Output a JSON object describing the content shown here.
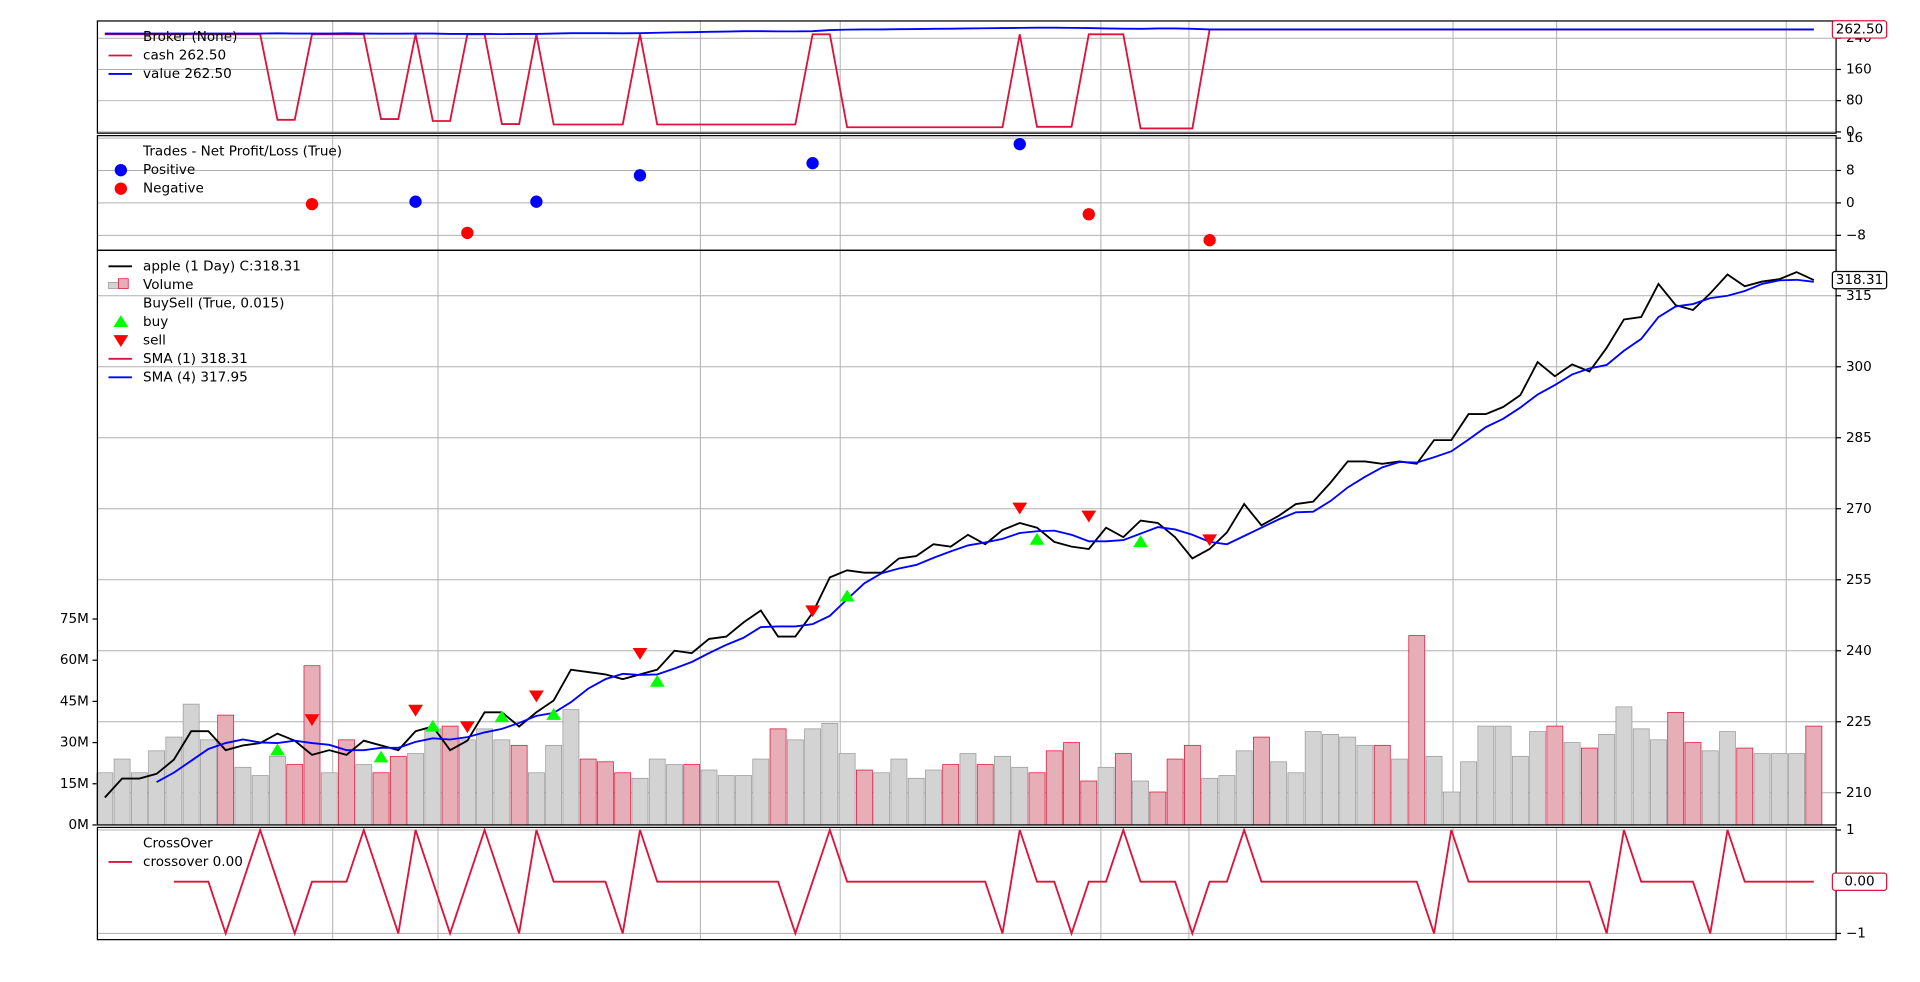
{
  "x_axis": {
    "xlim": [
      -0.43,
      100.29
    ],
    "xticks": [
      13.2,
      19.3,
      34.5,
      42.6,
      57.7,
      62.8,
      78.1,
      84.1,
      97.4
    ]
  },
  "chart_data": [
    {
      "type": "line",
      "title": "Broker (None)",
      "last_label": "262.50",
      "grid": true,
      "ylim": [
        -3.2,
        284.2
      ],
      "yticks": [
        0,
        80,
        160,
        240
      ],
      "series": [
        {
          "name": "cash 262.50",
          "color": "#dc143c",
          "values": [
            250,
            250,
            250,
            250,
            250,
            250,
            250,
            250,
            250,
            250,
            31,
            31,
            250,
            250,
            250,
            250,
            33,
            33,
            250,
            28,
            28,
            250,
            250,
            20,
            20,
            250,
            19,
            19,
            19,
            19,
            19,
            250,
            19,
            19,
            19,
            19,
            19,
            19,
            19,
            19,
            19,
            250,
            250,
            12,
            12,
            12,
            12,
            12,
            12,
            12,
            12,
            12,
            12,
            250,
            13,
            13,
            13,
            250,
            250,
            250,
            9,
            9,
            9,
            9,
            262.5,
            262.5,
            262.5,
            262.5,
            262.5,
            262.5,
            262.5,
            262.5,
            262.5,
            262.5,
            262.5,
            262.5,
            262.5,
            262.5,
            262.5,
            262.5,
            262.5,
            262.5,
            262.5,
            262.5,
            262.5,
            262.5,
            262.5,
            262.5,
            262.5,
            262.5,
            262.5,
            262.5,
            262.5,
            262.5,
            262.5,
            262.5,
            262.5,
            262.5,
            262.5,
            262.5
          ]
        },
        {
          "name": "value 262.50",
          "color": "#0000ff",
          "values": [
            252,
            252,
            252,
            252,
            252,
            252,
            252,
            252,
            252,
            252,
            252.5,
            252,
            252,
            252,
            252.5,
            252,
            251.5,
            251.5,
            252,
            252,
            251,
            251,
            251,
            250.5,
            251,
            251,
            252,
            253,
            253,
            253,
            252.5,
            253,
            254,
            255,
            255.5,
            256.5,
            257,
            258,
            258,
            257.5,
            257.5,
            258,
            261,
            262,
            262.5,
            262.5,
            263,
            263.5,
            264,
            264.5,
            265,
            265.5,
            266,
            266.5,
            267,
            267,
            266.5,
            266,
            265,
            264.5,
            264,
            265,
            265,
            264,
            262.5,
            262.5,
            262.5,
            262.5,
            262.5,
            262.5,
            262.5,
            262.5,
            262.5,
            262.5,
            262.5,
            262.5,
            262.5,
            262.5,
            262.5,
            262.5,
            262.5,
            262.5,
            262.5,
            262.5,
            262.5,
            262.5,
            262.5,
            262.5,
            262.5,
            262.5,
            262.5,
            262.5,
            262.5,
            262.5,
            262.5,
            262.5,
            262.5,
            262.5,
            262.5,
            262.5
          ]
        }
      ]
    },
    {
      "type": "scatter",
      "title": "Trades - Net Profit/Loss (True)",
      "grid": true,
      "ylim": [
        -11.7,
        16.6
      ],
      "yticks": [
        {
          "value": -8,
          "label": "−8"
        },
        0,
        8,
        16
      ],
      "series": [
        {
          "name": "Positive",
          "color": "#0000ff",
          "x": [
            18,
            25,
            31,
            41,
            53
          ],
          "values": [
            0.3,
            0.3,
            6.8,
            9.8,
            14.5
          ]
        },
        {
          "name": "Negative",
          "color": "#ff0000",
          "x": [
            12,
            21,
            57,
            64
          ],
          "values": [
            -0.3,
            -7.4,
            -2.8,
            -9.2
          ]
        }
      ]
    },
    {
      "type": "line",
      "last_label": "318.31",
      "grid": true,
      "ylim": [
        203.2,
        324.6
      ],
      "yticks": [
        210,
        225,
        240,
        255,
        270,
        285,
        300,
        315
      ],
      "series": [
        {
          "name": "apple (1 Day) C:318.31",
          "color": "#000000",
          "values": [
            209,
            213,
            213,
            214,
            217,
            223,
            223,
            219,
            220,
            220.5,
            222.5,
            221,
            218,
            219,
            218,
            221,
            220,
            219,
            223,
            224,
            219,
            221,
            227,
            227,
            224,
            227,
            229.5,
            236,
            235.5,
            235,
            234,
            235,
            236,
            240,
            239.5,
            242.5,
            243,
            246,
            248.5,
            243,
            243,
            248,
            255.5,
            257,
            256.5,
            256.5,
            259.5,
            260,
            262.5,
            262,
            264.5,
            262.5,
            265.5,
            267,
            266,
            263,
            262,
            261.5,
            266,
            264,
            267.5,
            267,
            264,
            259.5,
            261.5,
            265,
            271,
            266.5,
            268.5,
            271,
            271.5,
            275.5,
            280,
            280,
            279.5,
            280,
            279.5,
            284.5,
            284.5,
            290,
            290,
            291.5,
            294,
            301,
            298,
            300.5,
            299,
            304,
            310,
            310.5,
            317.5,
            313,
            312,
            315.5,
            319.5,
            317,
            318,
            318.5,
            320,
            318.31
          ]
        },
        {
          "name": "SMA (4) 317.95",
          "color": "#0000ff",
          "values": [
            null,
            null,
            null,
            212.25,
            214.25,
            216.75,
            219.25,
            220.5,
            221.25,
            220.63,
            220.5,
            221,
            220.5,
            220.13,
            219,
            219,
            219.5,
            219.5,
            220.75,
            221.5,
            221.25,
            221.75,
            222.75,
            223.5,
            224.75,
            226.25,
            226.88,
            229.13,
            232,
            234,
            235.13,
            234.88,
            235,
            236.25,
            237.63,
            239.5,
            241.25,
            242.75,
            245,
            245.13,
            245.13,
            245.63,
            247.38,
            250.88,
            254.25,
            256.38,
            257.38,
            258.13,
            259.63,
            261,
            262.25,
            262.88,
            263.63,
            264.88,
            265.25,
            265.38,
            264.5,
            263.13,
            263.13,
            263.38,
            264.75,
            266.13,
            265.63,
            264.5,
            263,
            262.5,
            264.25,
            266,
            267.75,
            269.25,
            269.38,
            271.63,
            274.5,
            276.75,
            278.75,
            279.88,
            279.75,
            280.88,
            282.13,
            284.63,
            287.25,
            289,
            291.38,
            294.13,
            296.13,
            298.38,
            299.63,
            300.38,
            303.38,
            305.88,
            310.5,
            312.75,
            313.25,
            314.5,
            315,
            316,
            317.5,
            318.25,
            318.38,
            317.95
          ]
        }
      ],
      "legend_only": [
        {
          "name": "SMA (1) 318.31",
          "color": "#dc143c"
        }
      ],
      "volume": {
        "name": "Volume",
        "up_color": "#d3d3d3",
        "down_color": "#e6aeb6",
        "ylim": [
          0,
          209.3
        ],
        "ticks": [
          {
            "value": 0,
            "label": "0M"
          },
          {
            "value": 15,
            "label": "15M"
          },
          {
            "value": 30,
            "label": "30M"
          },
          {
            "value": 45,
            "label": "45M"
          },
          {
            "value": 60,
            "label": "60M"
          },
          {
            "value": 75,
            "label": "75M"
          }
        ],
        "values": [
          19,
          24,
          19,
          27,
          32,
          44,
          31,
          40,
          21,
          18,
          25,
          22,
          58,
          19,
          31,
          22,
          19,
          25,
          26,
          35,
          36,
          31,
          35,
          31,
          29,
          19,
          29,
          42,
          24,
          23,
          19,
          17,
          24,
          22,
          22,
          20,
          18,
          18,
          24,
          35,
          31,
          35,
          37,
          26,
          20,
          19,
          24,
          17,
          20,
          22,
          26,
          22,
          25,
          21,
          19,
          27,
          30,
          16,
          21,
          26,
          16,
          12,
          24,
          29,
          17,
          18,
          27,
          32,
          23,
          19,
          34,
          33,
          32,
          29,
          29,
          24,
          69,
          25,
          12,
          23,
          36,
          36,
          25,
          34,
          36,
          30,
          28,
          33,
          43,
          35,
          31,
          41,
          30,
          27,
          34,
          28,
          26,
          26,
          26,
          36
        ]
      },
      "markers_title": "BuySell (True, 0.015)",
      "markers": [
        {
          "name": "buy",
          "color": "#00ff00",
          "x": [
            10,
            16,
            19,
            23,
            26,
            32,
            43,
            54,
            60
          ],
          "values": [
            219,
            217.5,
            224,
            226,
            226.5,
            233.5,
            251.5,
            263.5,
            263
          ]
        },
        {
          "name": "sell",
          "color": "#ff0000",
          "x": [
            12,
            18,
            21,
            25,
            31,
            41,
            53,
            57,
            64
          ],
          "values": [
            225.5,
            227.5,
            224,
            230.5,
            239.5,
            248.5,
            270.2,
            268.5,
            263.5
          ]
        }
      ]
    },
    {
      "type": "line",
      "title": "CrossOver",
      "last_label": "0.00",
      "grid": true,
      "ylim": [
        -1.12,
        1.05
      ],
      "yticks": [
        {
          "value": -1,
          "label": "−1"
        },
        1
      ],
      "series": [
        {
          "name": "crossover 0.00",
          "color": "#dc143c",
          "values": [
            null,
            null,
            null,
            null,
            0,
            0,
            0,
            -1,
            0,
            1,
            0,
            -1,
            0,
            0,
            0,
            1,
            0,
            -1,
            1,
            0,
            -1,
            0,
            1,
            0,
            -1,
            1,
            0,
            0,
            0,
            0,
            -1,
            1,
            0,
            0,
            0,
            0,
            0,
            0,
            0,
            0,
            -1,
            0,
            1,
            0,
            0,
            0,
            0,
            0,
            0,
            0,
            0,
            0,
            -1,
            1,
            0,
            0,
            -1,
            0,
            0,
            1,
            0,
            0,
            0,
            -1,
            0,
            0,
            1,
            0,
            0,
            0,
            0,
            0,
            0,
            0,
            0,
            0,
            0,
            -1,
            1,
            0,
            0,
            0,
            0,
            0,
            0,
            0,
            0,
            -1,
            1,
            0,
            0,
            0,
            0,
            -1,
            1,
            0,
            0,
            0,
            0,
            0
          ]
        }
      ]
    }
  ]
}
